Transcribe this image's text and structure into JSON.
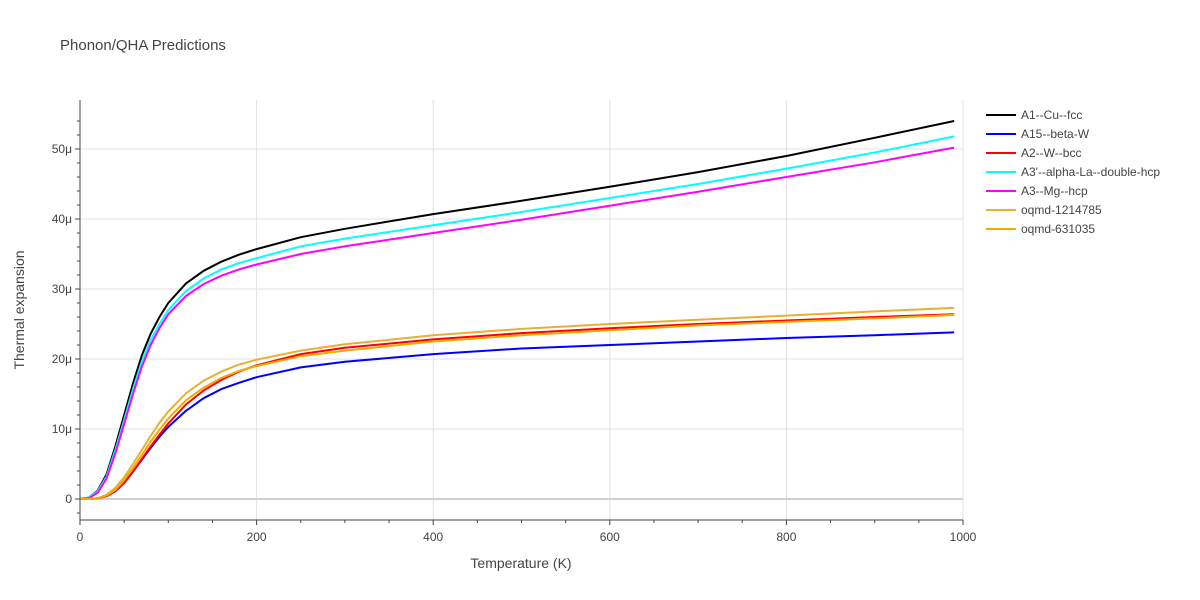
{
  "chart_data": {
    "type": "line",
    "title": "Phonon/QHA Predictions",
    "xlabel": "Temperature (K)",
    "ylabel": "Thermal expansion",
    "xlim": [
      0,
      1000
    ],
    "ylim": [
      -3e-06,
      5.7e-05
    ],
    "x_ticks": [
      0,
      200,
      400,
      600,
      800,
      1000
    ],
    "x_tick_labels": [
      "0",
      "200",
      "400",
      "600",
      "800",
      "1000"
    ],
    "y_ticks": [
      0,
      1e-05,
      2e-05,
      3e-05,
      4e-05,
      5e-05
    ],
    "y_tick_labels": [
      "0",
      "10μ",
      "20μ",
      "30μ",
      "40μ",
      "50μ"
    ],
    "grid": true,
    "legend_position": "right",
    "x": [
      0,
      10,
      20,
      30,
      40,
      50,
      60,
      70,
      80,
      90,
      100,
      120,
      140,
      160,
      180,
      200,
      250,
      300,
      400,
      500,
      600,
      700,
      800,
      900,
      990
    ],
    "series": [
      {
        "name": "A1--Cu--fcc",
        "color": "#000000",
        "values": [
          0,
          2e-07,
          1.2e-06,
          3.5e-06,
          7.5e-06,
          1.2e-05,
          1.65e-05,
          2.05e-05,
          2.36e-05,
          2.6e-05,
          2.8e-05,
          3.08e-05,
          3.26e-05,
          3.39e-05,
          3.49e-05,
          3.57e-05,
          3.74e-05,
          3.86e-05,
          4.07e-05,
          4.26e-05,
          4.46e-05,
          4.67e-05,
          4.9e-05,
          5.16e-05,
          5.4e-05
        ]
      },
      {
        "name": "A15--beta-W",
        "color": "#0000ff",
        "values": [
          0,
          0,
          1e-07,
          4e-07,
          1.1e-06,
          2.3e-06,
          3.9e-06,
          5.6e-06,
          7.3e-06,
          8.9e-06,
          1.03e-05,
          1.26e-05,
          1.44e-05,
          1.57e-05,
          1.66e-05,
          1.74e-05,
          1.88e-05,
          1.96e-05,
          2.07e-05,
          2.15e-05,
          2.2e-05,
          2.25e-05,
          2.3e-05,
          2.34e-05,
          2.38e-05
        ]
      },
      {
        "name": "A2--W--bcc",
        "color": "#ff0000",
        "values": [
          0,
          0,
          1e-07,
          4e-07,
          1.1e-06,
          2.3e-06,
          3.9e-06,
          5.7e-06,
          7.5e-06,
          9.2e-06,
          1.08e-05,
          1.35e-05,
          1.55e-05,
          1.7e-05,
          1.82e-05,
          1.91e-05,
          2.07e-05,
          2.16e-05,
          2.28e-05,
          2.37e-05,
          2.44e-05,
          2.5e-05,
          2.55e-05,
          2.6e-05,
          2.64e-05
        ]
      },
      {
        "name": "A3'--alpha-La--double-hcp",
        "color": "#00ffff",
        "values": [
          0,
          2e-07,
          1.1e-06,
          3.2e-06,
          7e-06,
          1.13e-05,
          1.57e-05,
          1.96e-05,
          2.27e-05,
          2.5e-05,
          2.7e-05,
          2.97e-05,
          3.15e-05,
          3.28e-05,
          3.37e-05,
          3.44e-05,
          3.61e-05,
          3.72e-05,
          3.91e-05,
          4.1e-05,
          4.3e-05,
          4.5e-05,
          4.72e-05,
          4.95e-05,
          5.18e-05
        ]
      },
      {
        "name": "A3--Mg--hcp",
        "color": "#ff00ff",
        "values": [
          0,
          1e-07,
          9e-07,
          2.9e-06,
          6.5e-06,
          1.07e-05,
          1.5e-05,
          1.89e-05,
          2.2e-05,
          2.44e-05,
          2.64e-05,
          2.9e-05,
          3.07e-05,
          3.19e-05,
          3.28e-05,
          3.35e-05,
          3.5e-05,
          3.61e-05,
          3.8e-05,
          3.99e-05,
          4.19e-05,
          4.39e-05,
          4.6e-05,
          4.81e-05,
          5.02e-05
        ]
      },
      {
        "name": "oqmd-1214785",
        "color": "#e6b030",
        "values": [
          0,
          0,
          1e-07,
          6e-07,
          1.6e-06,
          3.1e-06,
          5e-06,
          7e-06,
          9e-06,
          1.09e-05,
          1.25e-05,
          1.51e-05,
          1.69e-05,
          1.82e-05,
          1.92e-05,
          1.99e-05,
          2.12e-05,
          2.21e-05,
          2.34e-05,
          2.43e-05,
          2.5e-05,
          2.56e-05,
          2.62e-05,
          2.68e-05,
          2.73e-05
        ]
      },
      {
        "name": "oqmd-631035",
        "color": "#f2a900",
        "values": [
          0,
          0,
          1e-07,
          5e-07,
          1.3e-06,
          2.7e-06,
          4.4e-06,
          6.3e-06,
          8.2e-06,
          9.9e-06,
          1.15e-05,
          1.41e-05,
          1.59e-05,
          1.73e-05,
          1.83e-05,
          1.9e-05,
          2.04e-05,
          2.12e-05,
          2.25e-05,
          2.34e-05,
          2.41e-05,
          2.48e-05,
          2.53e-05,
          2.58e-05,
          2.63e-05
        ]
      }
    ]
  }
}
